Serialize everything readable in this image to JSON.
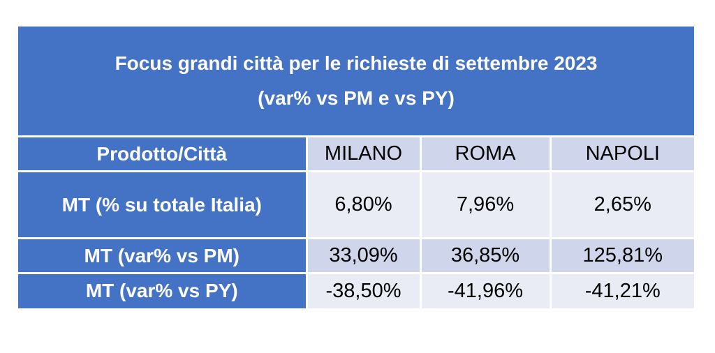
{
  "chart_data": {
    "type": "table",
    "title": "Focus grandi città per le richieste di settembre 2023",
    "subtitle": "(var% vs PM e vs PY)",
    "header_label": "Prodotto/Città",
    "columns": [
      "MILANO",
      "ROMA",
      "NAPOLI"
    ],
    "rows": [
      {
        "label": "MT (% su totale Italia)",
        "values": [
          "6,80%",
          "7,96%",
          "2,65%"
        ]
      },
      {
        "label": "MT (var% vs PM)",
        "values": [
          "33,09%",
          "36,85%",
          "125,81%"
        ]
      },
      {
        "label": "MT (var% vs PY)",
        "values": [
          "-38,50%",
          "-41,96%",
          "-41,21%"
        ]
      }
    ]
  },
  "colors": {
    "header_blue": "#4472c4",
    "band_mid": "#cfd5ea",
    "band_light": "#e9ebf5"
  }
}
